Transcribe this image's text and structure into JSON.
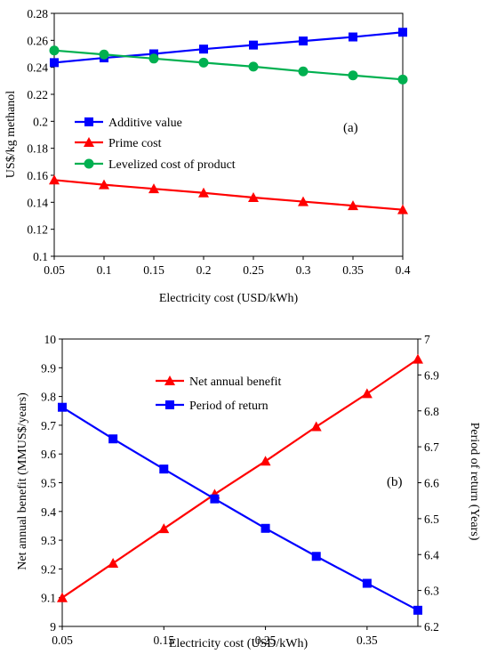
{
  "chart_data": [
    {
      "type": "line",
      "panel_label": "(a)",
      "xlabel": "Electricity cost (USD/kWh)",
      "ylabel": "US$/kg methanol",
      "x": [
        0.05,
        0.1,
        0.15,
        0.2,
        0.25,
        0.3,
        0.35,
        0.4
      ],
      "xlim": [
        0.05,
        0.4
      ],
      "ylim": [
        0.1,
        0.28
      ],
      "xticks": [
        "0.05",
        "0.1",
        "0.15",
        "0.2",
        "0.25",
        "0.3",
        "0.35",
        "0.4"
      ],
      "yticks": [
        "0.1",
        "0.12",
        "0.14",
        "0.16",
        "0.18",
        "0.2",
        "0.22",
        "0.24",
        "0.26",
        "0.28"
      ],
      "legend_position": "left-middle",
      "series": [
        {
          "name": "Additive value",
          "color": "#0000ff",
          "marker": "square",
          "values": [
            0.2435,
            0.247,
            0.25,
            0.2535,
            0.2565,
            0.2595,
            0.2625,
            0.266
          ]
        },
        {
          "name": "Prime cost",
          "color": "#ff0000",
          "marker": "triangle",
          "values": [
            0.1565,
            0.153,
            0.15,
            0.147,
            0.1435,
            0.1405,
            0.1375,
            0.1345
          ]
        },
        {
          "name": "Levelized cost of product",
          "color": "#00b050",
          "marker": "circle",
          "values": [
            0.2525,
            0.2495,
            0.2465,
            0.2435,
            0.2405,
            0.237,
            0.234,
            0.231
          ]
        }
      ]
    },
    {
      "type": "line",
      "panel_label": "(b)",
      "xlabel": "Electricity cost (USD/kWh)",
      "ylabel_left": "Net annual benefit (MMUS$/years)",
      "ylabel_right": "Period of return (Years)",
      "x": [
        0.05,
        0.1,
        0.15,
        0.2,
        0.25,
        0.3,
        0.35,
        0.4
      ],
      "xlim": [
        0.05,
        0.4
      ],
      "ylim_left": [
        9,
        10
      ],
      "ylim_right": [
        6.2,
        7
      ],
      "xticks": [
        "0.05",
        "0.15",
        "0.25",
        "0.35"
      ],
      "xtick_values": [
        0.05,
        0.15,
        0.25,
        0.35
      ],
      "yticks_left": [
        "9",
        "9.1",
        "9.2",
        "9.3",
        "9.4",
        "9.5",
        "9.6",
        "9.7",
        "9.8",
        "9.9",
        "10"
      ],
      "yticks_right": [
        "6.2",
        "6.3",
        "6.4",
        "6.5",
        "6.6",
        "6.7",
        "6.8",
        "6.9",
        "7"
      ],
      "legend_position": "top-center",
      "series": [
        {
          "name": "Net annual benefit",
          "color": "#ff0000",
          "marker": "triangle",
          "axis": "left",
          "values": [
            9.1,
            9.22,
            9.34,
            9.46,
            9.575,
            9.695,
            9.81,
            9.93
          ]
        },
        {
          "name": "Period of return",
          "color": "#0000ff",
          "marker": "square",
          "axis": "right",
          "values": [
            6.81,
            6.722,
            6.638,
            6.555,
            6.473,
            6.395,
            6.32,
            6.245
          ]
        }
      ]
    }
  ]
}
